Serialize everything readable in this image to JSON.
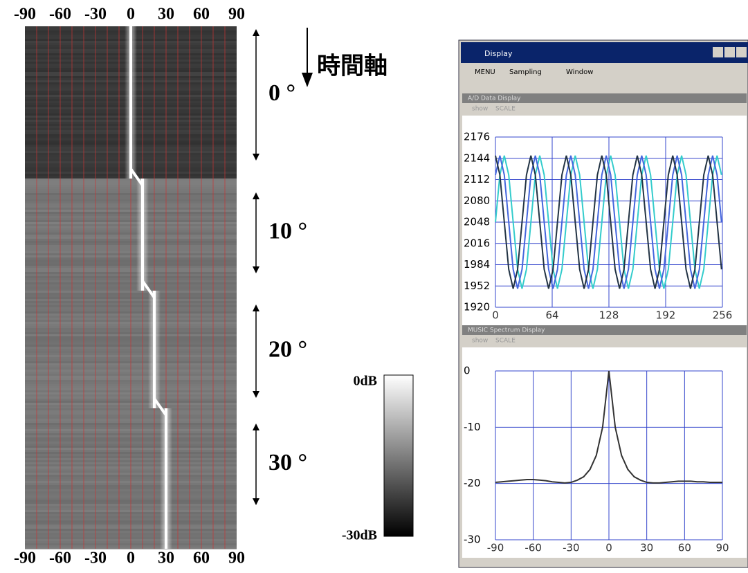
{
  "doa_map": {
    "type": "heatmap",
    "xlim": [
      -90,
      90
    ],
    "xticks": [
      -90,
      -60,
      -30,
      0,
      30,
      60,
      90
    ],
    "xgrid": [
      -80,
      -70,
      -60,
      -50,
      -40,
      -30,
      -20,
      -10,
      0,
      10,
      20,
      30,
      40,
      50,
      60,
      70,
      80
    ],
    "time_axis_label": "時間軸",
    "segments": [
      {
        "label": "0 °",
        "peak": 0
      },
      {
        "label": "10 °",
        "peak": 10
      },
      {
        "label": "20 °",
        "peak": 20
      },
      {
        "label": "30 °",
        "peak": 30
      }
    ]
  },
  "colorbar": {
    "max_label": "0dB",
    "min_label": "-30dB"
  },
  "window": {
    "title": "Display",
    "menu": [
      "MENU",
      "Sampling",
      "Window"
    ],
    "panels": [
      {
        "title": "A/D Data Display",
        "toolbar": [
          "show",
          "SCALE"
        ],
        "chart": {
          "type": "line",
          "xlim": [
            0,
            256
          ],
          "xticks": [
            0,
            64,
            128,
            192,
            256
          ],
          "ylim": [
            1920,
            2176
          ],
          "yticks": [
            1920,
            1952,
            1984,
            2016,
            2048,
            2080,
            2112,
            2144,
            2176
          ],
          "grid": true,
          "x": [
            0,
            5,
            10,
            15,
            20,
            25,
            30,
            35,
            40,
            45,
            50,
            55,
            60,
            65,
            70,
            75,
            80,
            85,
            90,
            95,
            100,
            105,
            110,
            115,
            120,
            125,
            130,
            135,
            140,
            145,
            150,
            155,
            160,
            165,
            170,
            175,
            180,
            185,
            190,
            195,
            200,
            205,
            210,
            215,
            220,
            225,
            230,
            235,
            240,
            245,
            250,
            255
          ],
          "series": [
            {
              "color": "#33cccc",
              "values": [
                2048,
                2119,
                2148,
                2119,
                2048,
                1977,
                1948,
                1977,
                2048,
                2119,
                2148,
                2119,
                2048,
                1977,
                1948,
                1977,
                2048,
                2119,
                2148,
                2119,
                2048,
                1977,
                1948,
                1977,
                2048,
                2119,
                2148,
                2119,
                2048,
                1977,
                1948,
                1977,
                2048,
                2119,
                2148,
                2119,
                2048,
                1977,
                1948,
                1977,
                2048,
                2119,
                2148,
                2119,
                2048,
                1977,
                1948,
                1977,
                2048,
                2119,
                2148,
                2119
              ]
            },
            {
              "color": "#4466dd",
              "values": [
                2119,
                2148,
                2119,
                2048,
                1977,
                1948,
                1977,
                2048,
                2119,
                2148,
                2119,
                2048,
                1977,
                1948,
                1977,
                2048,
                2119,
                2148,
                2119,
                2048,
                1977,
                1948,
                1977,
                2048,
                2119,
                2148,
                2119,
                2048,
                1977,
                1948,
                1977,
                2048,
                2119,
                2148,
                2119,
                2048,
                1977,
                1948,
                1977,
                2048,
                2119,
                2148,
                2119,
                2048,
                1977,
                1948,
                1977,
                2048,
                2119,
                2148,
                2119,
                2048
              ]
            },
            {
              "color": "#223344",
              "values": [
                2148,
                2119,
                2048,
                1977,
                1948,
                1977,
                2048,
                2119,
                2148,
                2119,
                2048,
                1977,
                1948,
                1977,
                2048,
                2119,
                2148,
                2119,
                2048,
                1977,
                1948,
                1977,
                2048,
                2119,
                2148,
                2119,
                2048,
                1977,
                1948,
                1977,
                2048,
                2119,
                2148,
                2119,
                2048,
                1977,
                1948,
                1977,
                2048,
                2119,
                2148,
                2119,
                2048,
                1977,
                1948,
                1977,
                2048,
                2119,
                2148,
                2119,
                2048,
                1977
              ]
            }
          ]
        }
      },
      {
        "title": "MUSIC Spectrum Display",
        "toolbar": [
          "show",
          "SCALE"
        ],
        "chart": {
          "type": "line",
          "xlim": [
            -90,
            90
          ],
          "xticks": [
            -90,
            -60,
            -30,
            0,
            30,
            60,
            90
          ],
          "ylim": [
            -30,
            0
          ],
          "yticks": [
            0,
            -10,
            -20,
            -30
          ],
          "grid": true,
          "x": [
            -90,
            -85,
            -80,
            -75,
            -70,
            -65,
            -60,
            -55,
            -50,
            -45,
            -40,
            -35,
            -30,
            -25,
            -20,
            -15,
            -10,
            -5,
            0,
            5,
            10,
            15,
            20,
            25,
            30,
            35,
            40,
            45,
            50,
            55,
            60,
            65,
            70,
            75,
            80,
            85,
            90
          ],
          "series": [
            {
              "color": "#333333",
              "values": [
                -19.8,
                -19.7,
                -19.6,
                -19.5,
                -19.4,
                -19.3,
                -19.3,
                -19.4,
                -19.5,
                -19.7,
                -19.8,
                -19.9,
                -19.8,
                -19.4,
                -18.8,
                -17.5,
                -15,
                -10,
                0,
                -10,
                -15,
                -17.5,
                -18.8,
                -19.4,
                -19.8,
                -19.9,
                -19.9,
                -19.8,
                -19.7,
                -19.6,
                -19.6,
                -19.6,
                -19.7,
                -19.7,
                -19.8,
                -19.8,
                -19.8
              ]
            }
          ]
        }
      }
    ]
  }
}
